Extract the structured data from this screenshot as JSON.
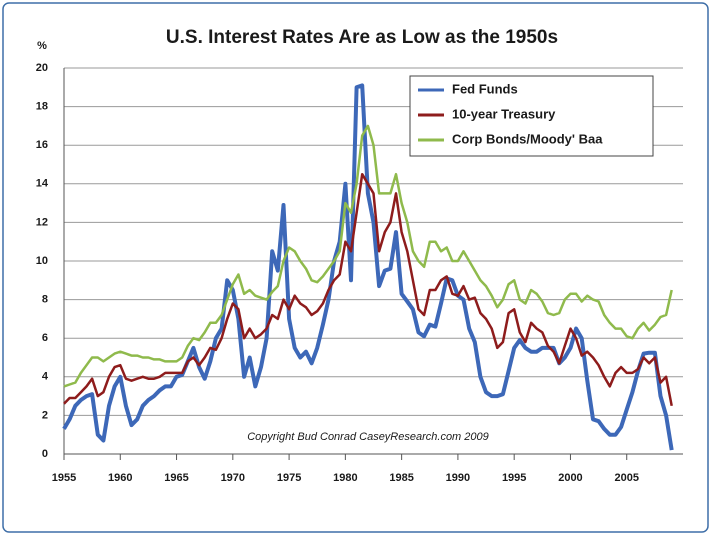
{
  "chart_data": {
    "type": "line",
    "title": "U.S. Interest Rates Are as Low as the 1950s",
    "y_label": "%",
    "annotation": "Copyright Bud Conrad  CaseyResearch.com 2009",
    "x": [
      1955,
      1955.5,
      1956,
      1956.5,
      1957,
      1957.5,
      1958,
      1958.5,
      1959,
      1959.5,
      1960,
      1960.5,
      1961,
      1961.5,
      1962,
      1962.5,
      1963,
      1963.5,
      1964,
      1964.5,
      1965,
      1965.5,
      1966,
      1966.5,
      1967,
      1967.5,
      1968,
      1968.5,
      1969,
      1969.5,
      1970,
      1970.5,
      1971,
      1971.5,
      1972,
      1972.5,
      1973,
      1973.5,
      1974,
      1974.5,
      1975,
      1975.5,
      1976,
      1976.5,
      1977,
      1977.5,
      1978,
      1978.5,
      1979,
      1979.5,
      1980,
      1980.5,
      1981,
      1981.5,
      1982,
      1982.5,
      1983,
      1983.5,
      1984,
      1984.5,
      1985,
      1985.5,
      1986,
      1986.5,
      1987,
      1987.5,
      1988,
      1988.5,
      1989,
      1989.5,
      1990,
      1990.5,
      1991,
      1991.5,
      1992,
      1992.5,
      1993,
      1993.5,
      1994,
      1994.5,
      1995,
      1995.5,
      1996,
      1996.5,
      1997,
      1997.5,
      1998,
      1998.5,
      1999,
      1999.5,
      2000,
      2000.5,
      2001,
      2001.5,
      2002,
      2002.5,
      2003,
      2003.5,
      2004,
      2004.5,
      2005,
      2005.5,
      2006,
      2006.5,
      2007,
      2007.5,
      2008,
      2008.5,
      2009
    ],
    "series": [
      {
        "name": "Fed Funds",
        "color": "#3d68b8",
        "width": 4,
        "values": [
          1.3,
          1.8,
          2.5,
          2.8,
          3.0,
          3.1,
          1.0,
          0.7,
          2.5,
          3.5,
          4.0,
          2.5,
          1.5,
          1.8,
          2.5,
          2.8,
          3.0,
          3.3,
          3.5,
          3.5,
          4.0,
          4.1,
          4.8,
          5.5,
          4.5,
          3.9,
          4.8,
          6.0,
          6.5,
          9.0,
          8.5,
          7.0,
          4.0,
          5.0,
          3.5,
          4.5,
          6.0,
          10.5,
          9.5,
          12.9,
          7.0,
          5.5,
          5.0,
          5.3,
          4.7,
          5.5,
          6.7,
          8.0,
          10.0,
          11.0,
          14.0,
          9.0,
          19.0,
          19.1,
          13.5,
          12.0,
          8.7,
          9.5,
          9.6,
          11.5,
          8.3,
          7.9,
          7.5,
          6.3,
          6.1,
          6.7,
          6.6,
          7.8,
          9.1,
          9.0,
          8.2,
          8.0,
          6.5,
          5.8,
          4.0,
          3.2,
          3.0,
          3.0,
          3.1,
          4.3,
          5.5,
          5.9,
          5.5,
          5.3,
          5.3,
          5.5,
          5.5,
          5.5,
          4.7,
          5.0,
          5.5,
          6.5,
          6.0,
          3.8,
          1.8,
          1.7,
          1.3,
          1.0,
          1.0,
          1.4,
          2.3,
          3.2,
          4.3,
          5.2,
          5.25,
          5.25,
          3.0,
          2.0,
          0.2
        ]
      },
      {
        "name": "10-year Treasury",
        "color": "#8e1c1c",
        "width": 2.5,
        "values": [
          2.6,
          2.9,
          2.9,
          3.2,
          3.5,
          3.9,
          3.0,
          3.2,
          4.0,
          4.5,
          4.6,
          3.9,
          3.8,
          3.9,
          4.0,
          3.9,
          3.9,
          4.0,
          4.2,
          4.2,
          4.2,
          4.2,
          4.8,
          5.0,
          4.6,
          5.0,
          5.5,
          5.4,
          6.0,
          7.0,
          7.8,
          7.5,
          6.0,
          6.5,
          6.0,
          6.2,
          6.5,
          7.2,
          7.0,
          8.0,
          7.5,
          8.2,
          7.8,
          7.6,
          7.2,
          7.4,
          7.8,
          8.5,
          9.0,
          9.3,
          11.0,
          10.5,
          12.5,
          14.5,
          14.0,
          13.5,
          10.5,
          11.5,
          12.0,
          13.5,
          11.5,
          10.5,
          9.0,
          7.5,
          7.2,
          8.5,
          8.5,
          9.0,
          9.2,
          8.3,
          8.2,
          8.7,
          8.0,
          8.1,
          7.3,
          7.0,
          6.5,
          5.5,
          5.8,
          7.3,
          7.5,
          6.3,
          5.8,
          6.8,
          6.5,
          6.3,
          5.6,
          5.3,
          4.7,
          5.6,
          6.5,
          6.0,
          5.1,
          5.3,
          5.0,
          4.6,
          4.0,
          3.5,
          4.2,
          4.5,
          4.2,
          4.2,
          4.4,
          5.0,
          4.7,
          5.0,
          3.7,
          4.0,
          2.5
        ]
      },
      {
        "name": "Corp Bonds/Moody' Baa",
        "color": "#8fba4c",
        "width": 2.5,
        "values": [
          3.5,
          3.6,
          3.7,
          4.2,
          4.6,
          5.0,
          5.0,
          4.8,
          5.0,
          5.2,
          5.3,
          5.2,
          5.1,
          5.1,
          5.0,
          5.0,
          4.9,
          4.9,
          4.8,
          4.8,
          4.8,
          5.0,
          5.6,
          6.0,
          5.9,
          6.3,
          6.8,
          6.8,
          7.2,
          8.0,
          8.8,
          9.3,
          8.3,
          8.5,
          8.2,
          8.1,
          8.0,
          8.4,
          8.7,
          10.0,
          10.7,
          10.5,
          10.0,
          9.6,
          9.0,
          8.9,
          9.2,
          9.6,
          10.0,
          10.5,
          13.0,
          12.5,
          14.0,
          16.5,
          17.0,
          16.0,
          13.5,
          13.5,
          13.5,
          14.5,
          13.0,
          12.0,
          10.5,
          10.0,
          9.7,
          11.0,
          11.0,
          10.5,
          10.7,
          10.0,
          10.0,
          10.5,
          10.0,
          9.5,
          9.0,
          8.7,
          8.2,
          7.6,
          8.0,
          8.8,
          9.0,
          8.0,
          7.8,
          8.5,
          8.3,
          7.9,
          7.3,
          7.2,
          7.3,
          8.0,
          8.3,
          8.3,
          7.9,
          8.2,
          8.0,
          7.9,
          7.2,
          6.8,
          6.5,
          6.5,
          6.1,
          6.0,
          6.5,
          6.8,
          6.4,
          6.7,
          7.1,
          7.2,
          8.5
        ]
      }
    ],
    "xlim": [
      1955,
      2010
    ],
    "xticks": [
      1955,
      1960,
      1965,
      1970,
      1975,
      1980,
      1985,
      1990,
      1995,
      2000,
      2005
    ],
    "ylim": [
      0,
      20
    ],
    "yticks": [
      0,
      2,
      4,
      6,
      8,
      10,
      12,
      14,
      16,
      18,
      20
    ],
    "grid": true,
    "legend": "top-right"
  }
}
